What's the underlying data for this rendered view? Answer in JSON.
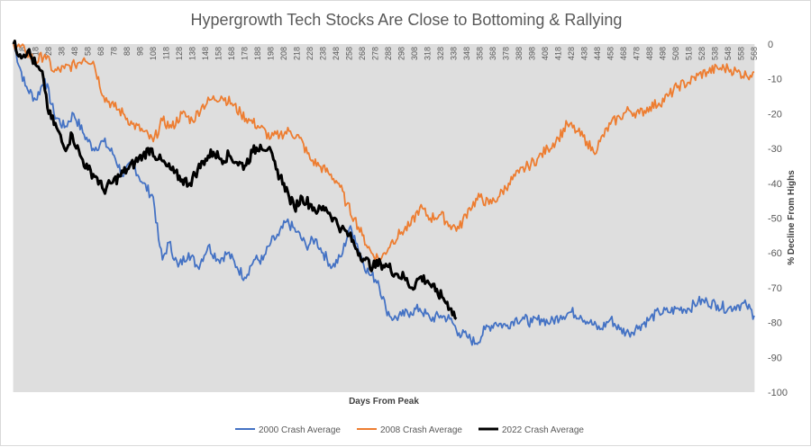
{
  "chart_data": {
    "type": "line",
    "title": "Hypergrowth Tech Stocks Are Close to Bottoming & Rallying",
    "xlabel": "Days From Peak",
    "ylabel": "% Decline From Highs",
    "xlim": [
      1,
      568
    ],
    "ylim": [
      -100,
      0
    ],
    "y_ticks": [
      0,
      -10,
      -20,
      -30,
      -40,
      -50,
      -60,
      -70,
      -80,
      -90,
      -100
    ],
    "x_ticks": [
      8,
      18,
      28,
      38,
      48,
      58,
      68,
      78,
      88,
      98,
      108,
      118,
      128,
      138,
      148,
      158,
      168,
      178,
      188,
      198,
      208,
      218,
      228,
      238,
      248,
      258,
      268,
      278,
      288,
      298,
      308,
      318,
      328,
      338,
      348,
      358,
      368,
      378,
      388,
      398,
      408,
      418,
      428,
      438,
      448,
      458,
      468,
      478,
      488,
      498,
      508,
      518,
      528,
      538,
      548,
      558,
      568
    ],
    "legend_position": "bottom",
    "grid": false,
    "series": [
      {
        "name": "2000 Crash Average",
        "color": "#4472C4",
        "x": [
          1,
          10,
          18,
          25,
          32,
          40,
          47,
          55,
          62,
          70,
          78,
          85,
          92,
          100,
          108,
          112,
          115,
          120,
          127,
          135,
          142,
          150,
          158,
          165,
          172,
          178,
          185,
          192,
          198,
          204,
          210,
          218,
          225,
          232,
          238,
          245,
          252,
          258,
          262,
          268,
          273,
          280,
          286,
          292,
          298,
          305,
          312,
          320,
          328,
          335,
          342,
          348,
          355,
          362,
          370,
          378,
          385,
          392,
          398,
          405,
          412,
          420,
          428,
          435,
          442,
          450,
          458,
          465,
          472,
          480,
          488,
          495,
          502,
          510,
          518,
          525,
          532,
          540,
          548,
          555,
          562,
          568
        ],
        "y": [
          0,
          -12,
          -16,
          -10,
          -20,
          -24,
          -20,
          -26,
          -30,
          -28,
          -32,
          -38,
          -34,
          -40,
          -44,
          -56,
          -62,
          -57,
          -64,
          -60,
          -64,
          -58,
          -62,
          -60,
          -64,
          -67,
          -62,
          -62,
          -57,
          -55,
          -51,
          -54,
          -58,
          -56,
          -60,
          -64,
          -61,
          -53,
          -55,
          -62,
          -66,
          -68,
          -76,
          -79,
          -78,
          -77,
          -76,
          -79,
          -78,
          -79,
          -83,
          -84,
          -86,
          -82,
          -80,
          -81,
          -79,
          -79,
          -80,
          -79,
          -80,
          -78,
          -77,
          -78,
          -80,
          -82,
          -79,
          -82,
          -83,
          -81,
          -79,
          -77,
          -77,
          -76,
          -76,
          -74,
          -74,
          -75,
          -76,
          -75,
          -75,
          -78
        ]
      },
      {
        "name": "2008 Crash Average",
        "color": "#ED7D31",
        "x": [
          1,
          10,
          18,
          25,
          32,
          40,
          48,
          55,
          62,
          70,
          78,
          85,
          92,
          100,
          108,
          115,
          122,
          130,
          138,
          145,
          152,
          160,
          168,
          175,
          182,
          190,
          198,
          205,
          212,
          220,
          228,
          235,
          242,
          250,
          256,
          262,
          268,
          275,
          282,
          290,
          298,
          305,
          312,
          320,
          328,
          335,
          342,
          350,
          358,
          365,
          372,
          380,
          388,
          395,
          402,
          410,
          418,
          425,
          432,
          440,
          445,
          450,
          458,
          465,
          472,
          480,
          488,
          495,
          502,
          510,
          518,
          525,
          532,
          540,
          548,
          555,
          562,
          568
        ],
        "y": [
          0,
          -2,
          -5,
          -3,
          -8,
          -7,
          -6,
          -4,
          -5,
          -15,
          -18,
          -20,
          -23,
          -25,
          -28,
          -22,
          -24,
          -20,
          -22,
          -18,
          -16,
          -15,
          -17,
          -20,
          -22,
          -24,
          -27,
          -26,
          -25,
          -27,
          -33,
          -35,
          -37,
          -40,
          -46,
          -50,
          -55,
          -60,
          -62,
          -57,
          -54,
          -52,
          -47,
          -50,
          -49,
          -52,
          -53,
          -47,
          -44,
          -46,
          -44,
          -40,
          -37,
          -35,
          -33,
          -30,
          -27,
          -23,
          -25,
          -28,
          -31,
          -28,
          -23,
          -21,
          -19,
          -20,
          -18,
          -17,
          -15,
          -12,
          -11,
          -9,
          -8,
          -7,
          -7,
          -8,
          -9,
          -8
        ]
      },
      {
        "name": "2022 Crash Average",
        "color": "#000000",
        "x": [
          1,
          6,
          12,
          18,
          24,
          28,
          34,
          40,
          46,
          52,
          58,
          64,
          70,
          76,
          82,
          88,
          94,
          100,
          106,
          112,
          118,
          124,
          130,
          136,
          142,
          148,
          154,
          160,
          166,
          172,
          178,
          184,
          190,
          196,
          202,
          208,
          212,
          216,
          222,
          228,
          234,
          240,
          246,
          252,
          258,
          264,
          270,
          276,
          282,
          288,
          294,
          300,
          306,
          312,
          318,
          324,
          330,
          336,
          340
        ],
        "y": [
          0,
          -3,
          -2,
          -6,
          -10,
          -20,
          -24,
          -30,
          -26,
          -32,
          -36,
          -38,
          -42,
          -40,
          -38,
          -36,
          -34,
          -32,
          -30,
          -33,
          -35,
          -37,
          -39,
          -40,
          -36,
          -33,
          -31,
          -33,
          -32,
          -34,
          -35,
          -31,
          -29,
          -30,
          -36,
          -40,
          -44,
          -47,
          -44,
          -46,
          -48,
          -47,
          -50,
          -53,
          -55,
          -59,
          -62,
          -64,
          -63,
          -64,
          -66,
          -67,
          -70,
          -67,
          -68,
          -71,
          -73,
          -76,
          -79
        ]
      }
    ]
  }
}
